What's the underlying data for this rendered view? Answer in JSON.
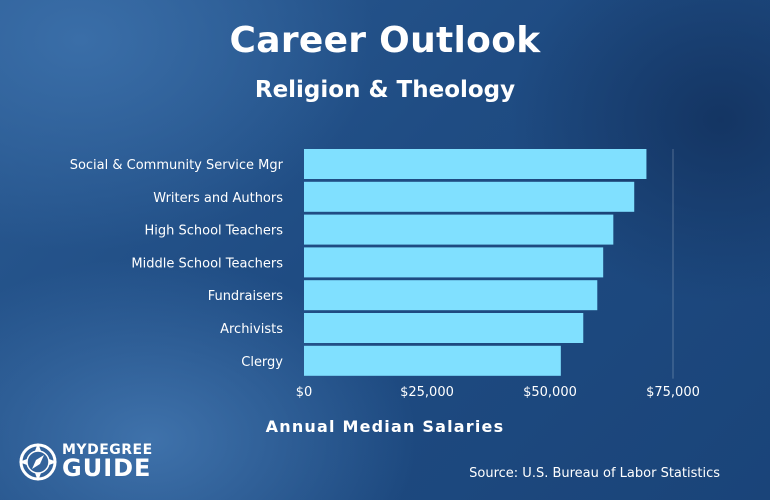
{
  "header": {
    "title": "Career Outlook",
    "subtitle": "Religion & Theology"
  },
  "chart_data": {
    "type": "bar",
    "orientation": "horizontal",
    "categories": [
      "Social & Community Service Mgr",
      "Writers and Authors",
      "High School Teachers",
      "Middle School Teachers",
      "Fundraisers",
      "Archivists",
      "Clergy"
    ],
    "values": [
      69600,
      67120,
      62870,
      60810,
      59610,
      56760,
      52200
    ],
    "xlabel": "Annual Median Salaries",
    "xlim": [
      0,
      75000
    ],
    "xticks": [
      "$0",
      "$25,000",
      "$50,000",
      "$75,000"
    ],
    "bar_color": "#80e0ff",
    "grid": "vertical line at $75,000"
  },
  "footer": {
    "logo_top": "MYDEGREE",
    "logo_bottom": "GUIDE",
    "logo_icon": "compass-icon",
    "source": "Source: U.S. Bureau of Labor Statistics"
  }
}
